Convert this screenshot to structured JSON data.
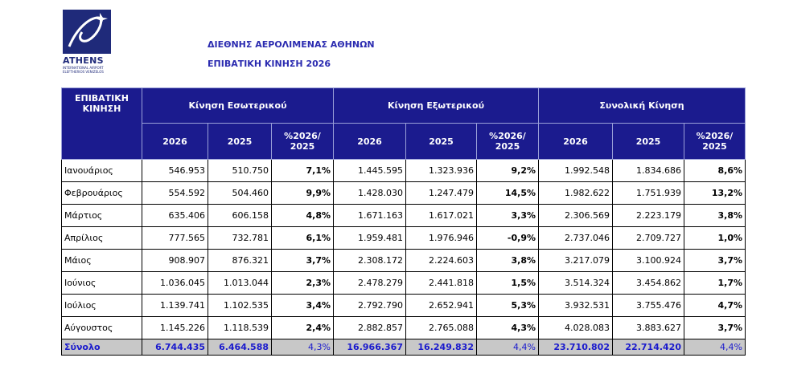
{
  "logo": {
    "name": "ATHENS",
    "subtitle": "INTERNATIONAL AIRPORT",
    "subtitle2": "ELEFTHERIOS VENIZELOS"
  },
  "titles": {
    "line1": "ΔΙΕΘΝΗΣ ΑΕΡΟΛΙΜΕΝΑΣ ΑΘΗΝΩΝ",
    "line2": "ΕΠΙΒΑΤΙΚΗ ΚΙΝΗΣΗ 2026"
  },
  "table": {
    "corner": "ΕΠΙΒΑΤΙΚΗ ΚΙΝΗΣΗ",
    "groups": [
      "Κίνηση Εσωτερικού",
      "Κίνηση Εξωτερικού",
      "Συνολική Κίνηση"
    ],
    "subheaders": [
      "2026",
      "2025",
      "%2026/ 2025",
      "2026",
      "2025",
      "%2026/ 2025",
      "2026",
      "2025",
      "%2026/ 2025"
    ],
    "rows": [
      {
        "month": "Ιανουάριος",
        "cells": [
          "546.953",
          "510.750",
          "7,1%",
          "1.445.595",
          "1.323.936",
          "9,2%",
          "1.992.548",
          "1.834.686",
          "8,6%"
        ]
      },
      {
        "month": "Φεβρουάριος",
        "cells": [
          "554.592",
          "504.460",
          "9,9%",
          "1.428.030",
          "1.247.479",
          "14,5%",
          "1.982.622",
          "1.751.939",
          "13,2%"
        ]
      },
      {
        "month": "Μάρτιος",
        "cells": [
          "635.406",
          "606.158",
          "4,8%",
          "1.671.163",
          "1.617.021",
          "3,3%",
          "2.306.569",
          "2.223.179",
          "3,8%"
        ]
      },
      {
        "month": "Απρίλιος",
        "cells": [
          "777.565",
          "732.781",
          "6,1%",
          "1.959.481",
          "1.976.946",
          "-0,9%",
          "2.737.046",
          "2.709.727",
          "1,0%"
        ]
      },
      {
        "month": "Μάιος",
        "cells": [
          "908.907",
          "876.321",
          "3,7%",
          "2.308.172",
          "2.224.603",
          "3,8%",
          "3.217.079",
          "3.100.924",
          "3,7%"
        ]
      },
      {
        "month": "Ιούνιος",
        "cells": [
          "1.036.045",
          "1.013.044",
          "2,3%",
          "2.478.279",
          "2.441.818",
          "1,5%",
          "3.514.324",
          "3.454.862",
          "1,7%"
        ]
      },
      {
        "month": "Ιούλιος",
        "cells": [
          "1.139.741",
          "1.102.535",
          "3,4%",
          "2.792.790",
          "2.652.941",
          "5,3%",
          "3.932.531",
          "3.755.476",
          "4,7%"
        ]
      },
      {
        "month": "Αύγουστος",
        "cells": [
          "1.145.226",
          "1.118.539",
          "2,4%",
          "2.882.857",
          "2.765.088",
          "4,3%",
          "4.028.083",
          "3.883.627",
          "3,7%"
        ]
      }
    ],
    "total": {
      "label": "Σύνολο",
      "cells": [
        "6.744.435",
        "6.464.588",
        "4,3%",
        "16.966.367",
        "16.249.832",
        "4,4%",
        "23.710.802",
        "22.714.420",
        "4,4%"
      ]
    }
  }
}
